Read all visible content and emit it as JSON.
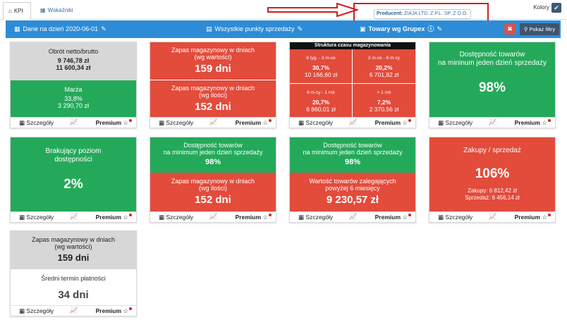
{
  "tabs": [
    {
      "label": "KPI"
    },
    {
      "label": "Wskaźniki bezpieczeństwa"
    }
  ],
  "colors_label": "Kolory",
  "tooltip": {
    "key": "Producent:",
    "value": "ZIAJA LTD. Z.P.L. SP. Z O.O."
  },
  "filters": {
    "date": "Dane na dzień 2020-06-01",
    "points": "Wszystkie punkty sprzedaży",
    "group": "Towary wg Grupex",
    "show_filters": "Pokaż filtry"
  },
  "footer": {
    "details": "Szczegóły",
    "premium": "Premium"
  },
  "cards": {
    "obrot": {
      "label": "Obrót netto/brutto",
      "v1": "9 746,78 zł",
      "v2": "11 600,34 zł",
      "marza": "Marża",
      "m1": "33,8%",
      "m2": "3 290,70 zł"
    },
    "zapas1": {
      "l1": "Zapas magazynowy w dniach",
      "l2": "(wg wartości)",
      "v1": "159 dni",
      "l3": "Zapas magazynowy w dniach",
      "l4": "(wg ilości)",
      "v2": "152 dni"
    },
    "struktura": {
      "title": "Struktura czasu magazynowania",
      "cells": [
        {
          "t": "8 tyg. - 3 m-ce",
          "p": "30,7%",
          "z": "10 166,60 zł"
        },
        {
          "t": "3 m-ce - 6 m-cy",
          "p": "20,2%",
          "z": "6 701,82 zł"
        },
        {
          "t": "6 m-cy - 1 rok",
          "p": "20,7%",
          "z": "6 860,01 zł"
        },
        {
          "t": "> 1 rok",
          "p": "7,2%",
          "z": "2 370,56 zł"
        }
      ]
    },
    "dostepnosc1": {
      "l1": "Dostępność towarów",
      "l2": "na mininum jeden dzień sprzedaży",
      "v": "98%"
    },
    "brakujacy": {
      "l1": "Brakujący poziom",
      "l2": "dostępności",
      "v": "2%"
    },
    "dost_zapas": {
      "l1": "Dostępność towarów",
      "l2": "na minimum jeden dzień sprzedaży",
      "v1": "98%",
      "l3": "Zapas magazynowy w dniach",
      "l4": "(wg ilości)",
      "v2": "152 dni"
    },
    "dost_wartosc": {
      "l1": "Dostępność towarów",
      "l2": "na minimum jeden dzień sprzedaży",
      "v1": "98%",
      "l3": "Wartość towarów zalegających",
      "l4": "powyżej 6 miesięcy",
      "v2": "9 230,57 zł"
    },
    "zakupy": {
      "l1": "Zakupy / sprzedaż",
      "v": "106%",
      "z1": "Zakupy: 6 812,42 zł",
      "z2": "Sprzedaż: 6 456,14 zł"
    },
    "zapas_termin": {
      "l1": "Zapas magazynowy w dniach",
      "l2": "(wg wartości)",
      "v1": "159 dni",
      "l3": "Średni termin płatności",
      "v2": "34 dni"
    }
  }
}
